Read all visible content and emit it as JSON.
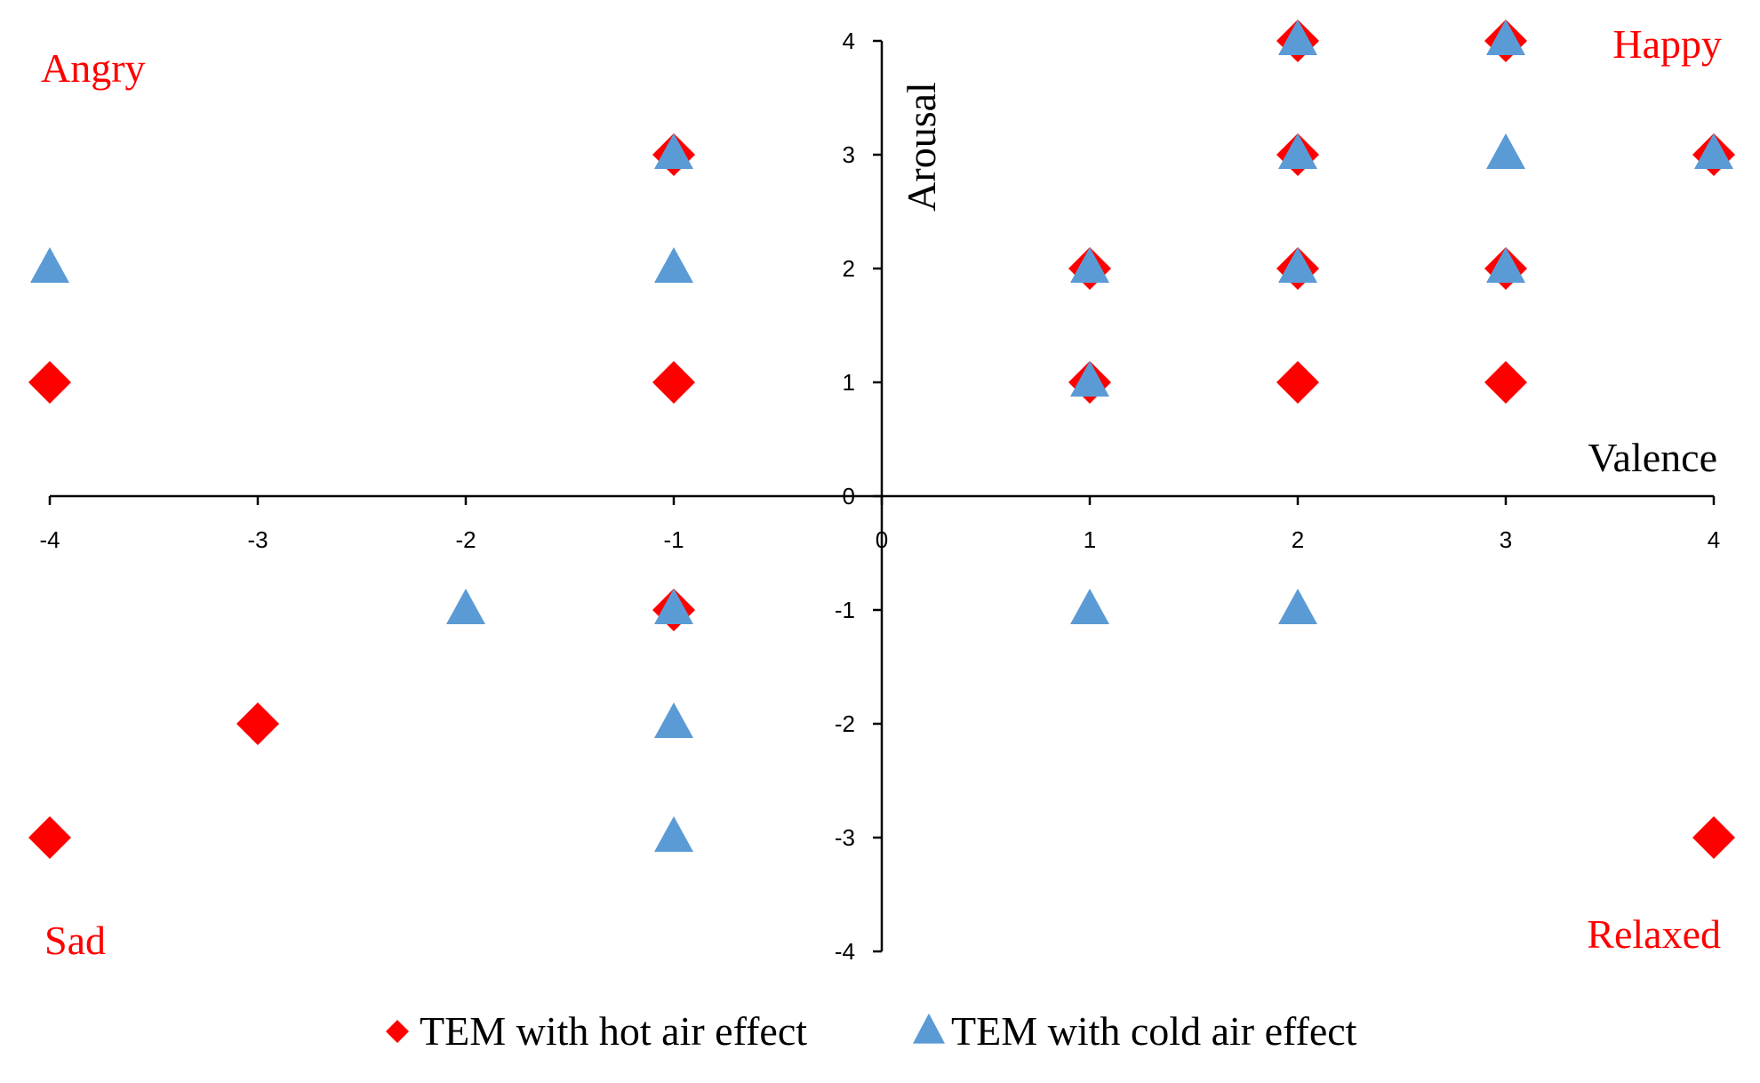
{
  "chart_data": {
    "type": "scatter",
    "title": "",
    "xlabel": "Valence",
    "ylabel": "Arousal",
    "xlim": [
      -4,
      4
    ],
    "ylim": [
      -4,
      4
    ],
    "x_ticks": [
      "-4",
      "-3",
      "-2",
      "-1",
      "0",
      "1",
      "2",
      "3",
      "4"
    ],
    "y_ticks": [
      "-4",
      "-3",
      "-2",
      "-1",
      "0",
      "1",
      "2",
      "3",
      "4"
    ],
    "grid": false,
    "legend_position": "bottom",
    "quadrant_labels": {
      "top_left": "Angry",
      "top_right": "Happy",
      "bottom_left": "Sad",
      "bottom_right": "Relaxed"
    },
    "series": [
      {
        "name": "TEM with hot air effect",
        "marker": "diamond",
        "color": "#ff0000",
        "points": [
          [
            -4,
            1
          ],
          [
            -4,
            -3
          ],
          [
            -3,
            -2
          ],
          [
            -1,
            3
          ],
          [
            -1,
            1
          ],
          [
            -1,
            -1
          ],
          [
            1,
            2
          ],
          [
            1,
            1
          ],
          [
            2,
            4
          ],
          [
            2,
            3
          ],
          [
            2,
            2
          ],
          [
            2,
            1
          ],
          [
            3,
            4
          ],
          [
            3,
            2
          ],
          [
            3,
            1
          ],
          [
            4,
            3
          ],
          [
            4,
            -3
          ]
        ]
      },
      {
        "name": "TEM with cold air effect",
        "marker": "triangle",
        "color": "#5b9bd5",
        "points": [
          [
            -4,
            2
          ],
          [
            -2,
            -1
          ],
          [
            -1,
            3
          ],
          [
            -1,
            2
          ],
          [
            -1,
            -1
          ],
          [
            -1,
            -2
          ],
          [
            -1,
            -3
          ],
          [
            1,
            2
          ],
          [
            1,
            1
          ],
          [
            1,
            -1
          ],
          [
            2,
            4
          ],
          [
            2,
            3
          ],
          [
            2,
            2
          ],
          [
            2,
            -1
          ],
          [
            3,
            4
          ],
          [
            3,
            3
          ],
          [
            3,
            2
          ],
          [
            4,
            3
          ]
        ]
      }
    ],
    "quadrant_color": "#ff0000"
  }
}
